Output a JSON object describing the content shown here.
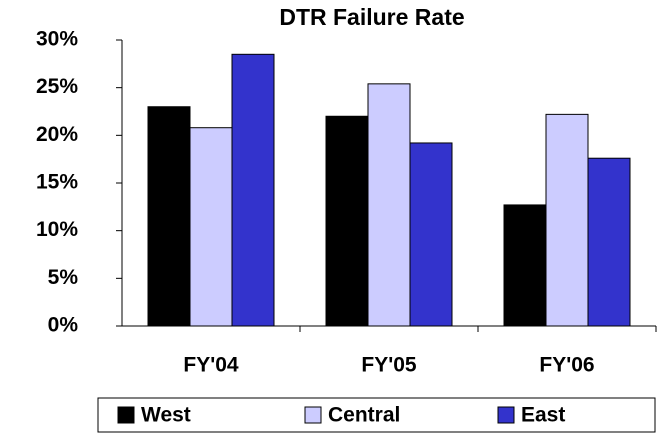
{
  "chart_data": {
    "type": "bar",
    "title": "DTR Failure Rate",
    "categories": [
      "FY'04",
      "FY'05",
      "FY'06"
    ],
    "series": [
      {
        "name": "West",
        "color": "#000000",
        "values": [
          23,
          22,
          12.7
        ]
      },
      {
        "name": "Central",
        "color": "#ccccff",
        "values": [
          20.8,
          25.4,
          22.2
        ]
      },
      {
        "name": "East",
        "color": "#3333cc",
        "values": [
          28.5,
          19.2,
          17.6
        ]
      }
    ],
    "ylim": [
      0,
      30
    ],
    "yticks": [
      {
        "value": 0,
        "label": "0%"
      },
      {
        "value": 5,
        "label": "5%"
      },
      {
        "value": 10,
        "label": "10%"
      },
      {
        "value": 15,
        "label": "15%"
      },
      {
        "value": 20,
        "label": "20%"
      },
      {
        "value": 25,
        "label": "25%"
      },
      {
        "value": 30,
        "label": "30%"
      }
    ],
    "legend": "bottom"
  }
}
